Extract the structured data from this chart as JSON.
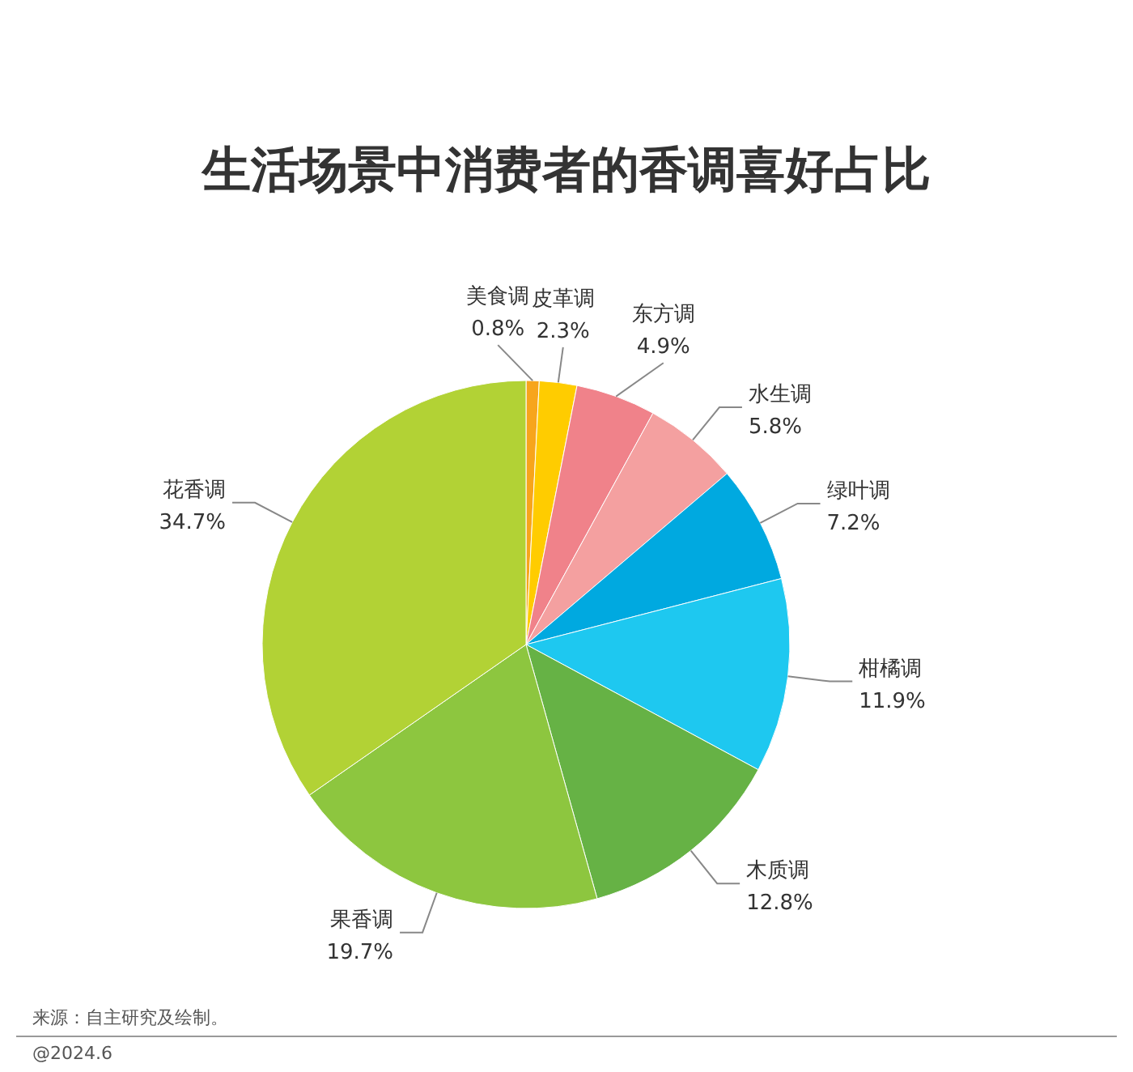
{
  "chart_data": {
    "type": "pie",
    "title": "生活场景中消费者的香调喜好占比",
    "categories": [
      "美食调",
      "皮革调",
      "东方调",
      "水生调",
      "绿叶调",
      "柑橘调",
      "木质调",
      "果香调",
      "花香调"
    ],
    "values": [
      0.8,
      2.3,
      4.9,
      5.8,
      7.2,
      11.9,
      12.8,
      19.7,
      34.7
    ],
    "value_labels": [
      "0.8%",
      "2.3%",
      "4.9%",
      "5.8%",
      "7.2%",
      "11.9%",
      "12.8%",
      "19.7%",
      "34.7%"
    ],
    "colors": [
      "#f7a51c",
      "#ffcc00",
      "#f0828a",
      "#f4a0a0",
      "#00a9e0",
      "#1ec8f0",
      "#66b245",
      "#8dc63f",
      "#b2d235"
    ],
    "annotations": [
      "来源：自主研究及绘制。",
      "@2024.6"
    ]
  }
}
